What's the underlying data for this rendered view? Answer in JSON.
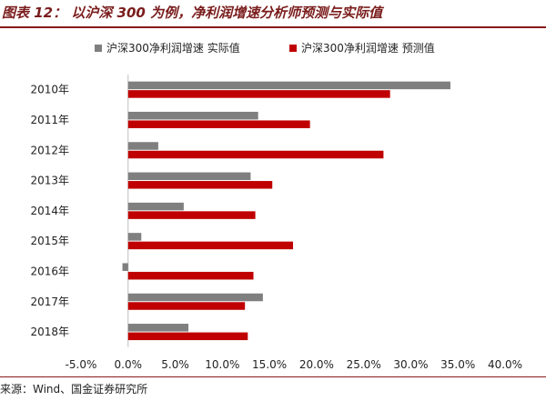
{
  "header": {
    "title": "图表 12：   以沪深 300 为例，净利润增速分析师预测与实际值"
  },
  "footer": {
    "source": "来源：Wind、国金证券研究所"
  },
  "colors": {
    "actual": "#7f7f7f",
    "forecast": "#c00000",
    "accent": "#8b1a1a"
  },
  "chart_data": {
    "type": "bar",
    "orientation": "horizontal",
    "categories": [
      "2010年",
      "2011年",
      "2012年",
      "2013年",
      "2014年",
      "2015年",
      "2016年",
      "2017年",
      "2018年"
    ],
    "series": [
      {
        "name": "沪深300净利润增速 实际值",
        "values": [
          34.2,
          13.8,
          3.2,
          13.0,
          5.9,
          1.4,
          -0.6,
          14.3,
          6.4
        ]
      },
      {
        "name": "沪深300净利润增速 预测值",
        "values": [
          27.8,
          19.3,
          27.1,
          15.3,
          13.5,
          17.5,
          13.3,
          12.4,
          12.7
        ]
      }
    ],
    "xlim": [
      -5,
      40
    ],
    "xticks": [
      "-5.0%",
      "0.0%",
      "5.0%",
      "10.0%",
      "15.0%",
      "20.0%",
      "25.0%",
      "30.0%",
      "35.0%",
      "40.0%"
    ],
    "legend_position": "top",
    "grid": false
  }
}
